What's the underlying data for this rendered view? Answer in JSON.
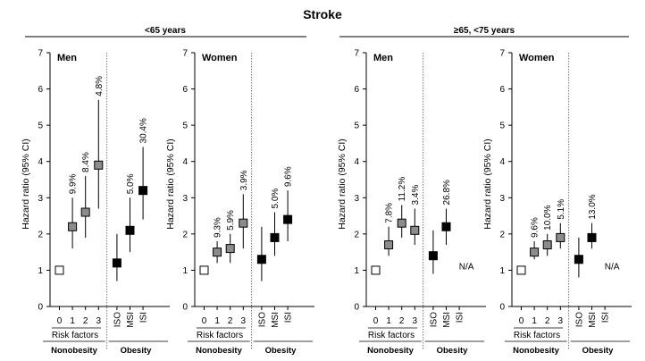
{
  "title": "Stroke",
  "groups": [
    {
      "label": "<65 years"
    },
    {
      "label": "≥65, <75 years"
    }
  ],
  "y_axis_label": "Hazard ratio (95% CI)",
  "y_ticks": [
    "0",
    "1",
    "2",
    "3",
    "4",
    "5",
    "6",
    "7"
  ],
  "x_tick_labels": [
    "0",
    "1",
    "2",
    "3",
    "ISO",
    "MSI",
    "ISI"
  ],
  "risk_factors_label": "Risk factors",
  "nonobesity_label": "Nonobesity",
  "obesity_label": "Obesity",
  "na_label": "N/A",
  "colors": {
    "reference": "#ffffff",
    "risk_factor": "#8c8c8c",
    "obesity": "#000000"
  },
  "chart_data": {
    "type": "scatter",
    "ylim": [
      0,
      7
    ],
    "categories": [
      "0",
      "1",
      "2",
      "3",
      "ISO",
      "MSI",
      "ISI"
    ],
    "panels": [
      {
        "group": "<65 years",
        "label": "Men",
        "hr": [
          1.0,
          2.2,
          2.6,
          3.9,
          1.2,
          2.1,
          3.2
        ],
        "ci_low": [
          1.0,
          1.6,
          1.9,
          2.7,
          0.7,
          1.5,
          2.4
        ],
        "ci_high": [
          1.0,
          3.0,
          3.6,
          5.7,
          2.0,
          3.0,
          4.4
        ],
        "pct": [
          "",
          "9.9%",
          "8.4%",
          "4.8%",
          "",
          "5.0%",
          "30.4%"
        ]
      },
      {
        "group": "<65 years",
        "label": "Women",
        "hr": [
          1.0,
          1.5,
          1.6,
          2.3,
          1.3,
          1.9,
          2.4
        ],
        "ci_low": [
          1.0,
          1.2,
          1.2,
          1.6,
          0.7,
          1.4,
          1.8
        ],
        "ci_high": [
          1.0,
          1.8,
          2.0,
          3.1,
          2.2,
          2.6,
          3.2
        ],
        "pct": [
          "",
          "9.3%",
          "5.9%",
          "3.9%",
          "",
          "5.0%",
          "9.6%"
        ]
      },
      {
        "group": "≥65, <75 years",
        "label": "Men",
        "hr": [
          1.0,
          1.7,
          2.3,
          2.1,
          1.4,
          2.2,
          null
        ],
        "ci_low": [
          1.0,
          1.4,
          1.9,
          1.7,
          0.9,
          1.7,
          null
        ],
        "ci_high": [
          1.0,
          2.2,
          2.8,
          2.7,
          2.1,
          2.7,
          null
        ],
        "pct": [
          "",
          "7.8%",
          "11.2%",
          "3.4%",
          "",
          "26.8%",
          "N/A"
        ]
      },
      {
        "group": "≥65, <75 years",
        "label": "Women",
        "hr": [
          1.0,
          1.5,
          1.7,
          1.9,
          1.3,
          1.9,
          null
        ],
        "ci_low": [
          1.0,
          1.3,
          1.4,
          1.6,
          0.8,
          1.6,
          null
        ],
        "ci_high": [
          1.0,
          1.8,
          2.0,
          2.3,
          1.9,
          2.3,
          null
        ],
        "pct": [
          "",
          "9.6%",
          "10.0%",
          "5.1%",
          "",
          "13.0%",
          "N/A"
        ]
      }
    ]
  }
}
